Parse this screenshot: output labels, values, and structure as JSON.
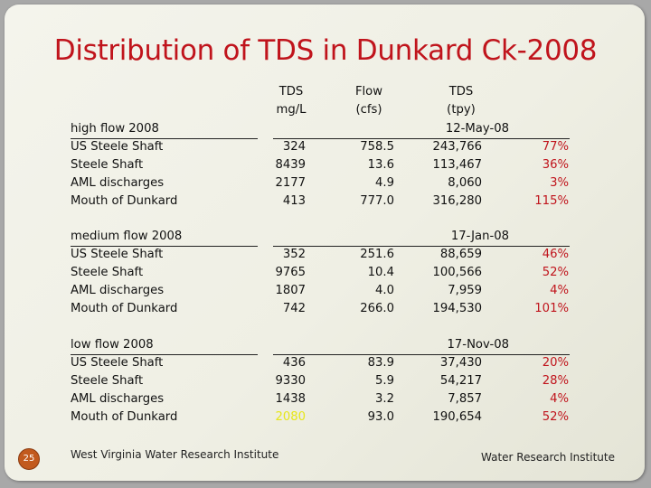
{
  "title": "Distribution of TDS in Dunkard Ck-2008",
  "headers": {
    "tds_mgl": [
      "TDS",
      "mg/L"
    ],
    "flow": [
      "Flow",
      "(cfs)"
    ],
    "tds_tpy": [
      "TDS",
      "(tpy)"
    ]
  },
  "sections": [
    {
      "label": "high flow 2008",
      "date": "12-May-08",
      "rows": [
        {
          "name": "US Steele Shaft",
          "tds": "324",
          "flow": "758.5",
          "tpy": "243,766",
          "pct": "77%"
        },
        {
          "name": "Steele Shaft",
          "tds": "8439",
          "flow": "13.6",
          "tpy": "113,467",
          "pct": "36%"
        },
        {
          "name": "AML discharges",
          "tds": "2177",
          "flow": "4.9",
          "tpy": "8,060",
          "pct": "3%"
        },
        {
          "name": "Mouth of Dunkard",
          "tds": "413",
          "flow": "777.0",
          "tpy": "316,280",
          "pct": "115%"
        }
      ]
    },
    {
      "label": "medium flow 2008",
      "date": "17-Jan-08",
      "rows": [
        {
          "name": "US Steele Shaft",
          "tds": "352",
          "flow": "251.6",
          "tpy": "88,659",
          "pct": "46%"
        },
        {
          "name": "Steele Shaft",
          "tds": "9765",
          "flow": "10.4",
          "tpy": "100,566",
          "pct": "52%"
        },
        {
          "name": "AML discharges",
          "tds": "1807",
          "flow": "4.0",
          "tpy": "7,959",
          "pct": "4%"
        },
        {
          "name": "Mouth of Dunkard",
          "tds": "742",
          "flow": "266.0",
          "tpy": "194,530",
          "pct": "101%"
        }
      ]
    },
    {
      "label": "low flow 2008",
      "date": "17-Nov-08",
      "rows": [
        {
          "name": "US Steele Shaft",
          "tds": "436",
          "flow": "83.9",
          "tpy": "37,430",
          "pct": "20%"
        },
        {
          "name": "Steele Shaft",
          "tds": "9330",
          "flow": "5.9",
          "tpy": "54,217",
          "pct": "28%"
        },
        {
          "name": "AML discharges",
          "tds": "1438",
          "flow": "3.2",
          "tpy": "7,857",
          "pct": "4%"
        },
        {
          "name": "Mouth of Dunkard",
          "tds": "2080",
          "flow": "93.0",
          "tpy": "190,654",
          "pct": "52%",
          "highlight_tds": true
        }
      ]
    }
  ],
  "highlight_color": "#e6e61a",
  "accent_color": "#c0141c",
  "slide_number": "25",
  "footer_left": "West Virginia Water Research Institute",
  "footer_right": "Water Research Institute"
}
